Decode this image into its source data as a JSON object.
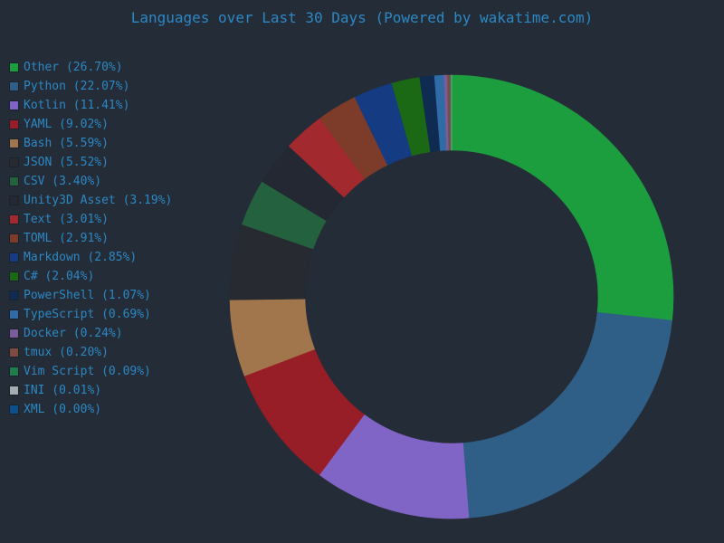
{
  "chart_data": {
    "type": "pie",
    "title": "Languages over Last 30 Days (Powered by wakatime.com)",
    "legend_position": "left",
    "series": [
      {
        "name": "Other",
        "percent_label": "26.70%",
        "value": 26.7,
        "color": "#1c9e3e"
      },
      {
        "name": "Python",
        "percent_label": "22.07%",
        "value": 22.07,
        "color": "#2f5f87"
      },
      {
        "name": "Kotlin",
        "percent_label": "11.41%",
        "value": 11.41,
        "color": "#8064c6"
      },
      {
        "name": "YAML",
        "percent_label": "9.02%",
        "value": 9.02,
        "color": "#971d26"
      },
      {
        "name": "Bash",
        "percent_label": "5.59%",
        "value": 5.59,
        "color": "#a2764d"
      },
      {
        "name": "JSON",
        "percent_label": "5.52%",
        "value": 5.52,
        "color": "#272a30"
      },
      {
        "name": "CSV",
        "percent_label": "3.40%",
        "value": 3.4,
        "color": "#24613f"
      },
      {
        "name": "Unity3D Asset",
        "percent_label": "3.19%",
        "value": 3.19,
        "color": "#232832"
      },
      {
        "name": "Text",
        "percent_label": "3.01%",
        "value": 3.01,
        "color": "#a2292d"
      },
      {
        "name": "TOML",
        "percent_label": "2.91%",
        "value": 2.91,
        "color": "#7c3c29"
      },
      {
        "name": "Markdown",
        "percent_label": "2.85%",
        "value": 2.85,
        "color": "#153b83"
      },
      {
        "name": "C#",
        "percent_label": "2.04%",
        "value": 2.04,
        "color": "#1b6815"
      },
      {
        "name": "PowerShell",
        "percent_label": "1.07%",
        "value": 1.07,
        "color": "#0f2b52"
      },
      {
        "name": "TypeScript",
        "percent_label": "0.69%",
        "value": 0.69,
        "color": "#2f6ba5"
      },
      {
        "name": "Docker",
        "percent_label": "0.24%",
        "value": 0.24,
        "color": "#7a5c9a"
      },
      {
        "name": "tmux",
        "percent_label": "0.20%",
        "value": 0.2,
        "color": "#7e4a42"
      },
      {
        "name": "Vim Script",
        "percent_label": "0.09%",
        "value": 0.09,
        "color": "#1f7d4d"
      },
      {
        "name": "INI",
        "percent_label": "0.01%",
        "value": 0.01,
        "color": "#a4abb1"
      },
      {
        "name": "XML",
        "percent_label": "0.00%",
        "value": 0.0,
        "color": "#0c4f8b"
      }
    ]
  }
}
